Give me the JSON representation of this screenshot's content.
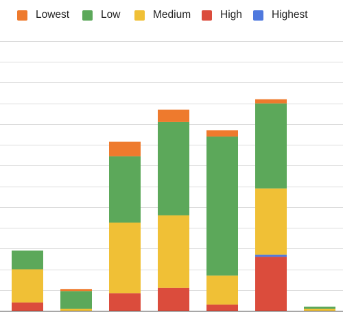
{
  "chart_data": {
    "type": "bar",
    "stacked": true,
    "title": "",
    "xlabel": "",
    "ylabel": "",
    "legend_position": "top",
    "grid": true,
    "ylim": [
      0,
      13
    ],
    "categories": [
      "",
      "",
      "",
      "",
      "",
      "",
      ""
    ],
    "series": [
      {
        "name": "Lowest",
        "color": "#ee7a2d",
        "values": [
          0,
          0.1,
          0.7,
          0.6,
          0.3,
          0.2,
          0
        ]
      },
      {
        "name": "Low",
        "color": "#5ca85a",
        "values": [
          0.9,
          0.85,
          3.2,
          4.5,
          6.7,
          4.1,
          0.1
        ]
      },
      {
        "name": "Medium",
        "color": "#f0c036",
        "values": [
          1.6,
          0.1,
          3.4,
          3.5,
          1.4,
          3.2,
          0.1
        ]
      },
      {
        "name": "High",
        "color": "#db4c3c",
        "values": [
          0.4,
          0,
          0.85,
          1.1,
          0.3,
          2.6,
          0
        ]
      },
      {
        "name": "Highest",
        "color": "#4f79de",
        "values": [
          0,
          0,
          0,
          0,
          0,
          0.1,
          0
        ]
      }
    ]
  }
}
